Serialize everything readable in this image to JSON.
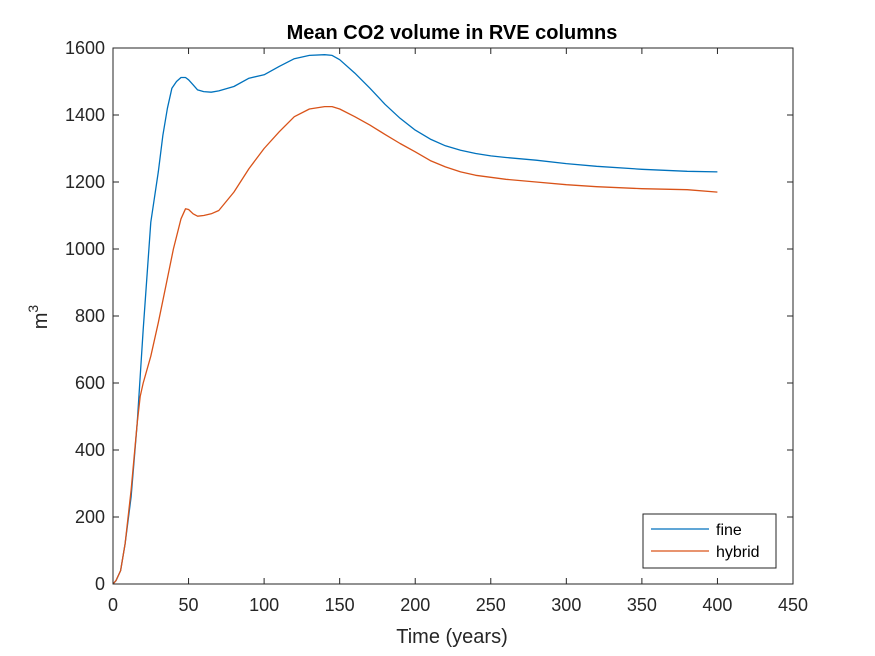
{
  "chart_data": {
    "type": "line",
    "title": "Mean CO2 volume in RVE columns",
    "xlabel": "Time (years)",
    "ylabel": "m",
    "ylabel_superscript": "3",
    "xlim": [
      0,
      450
    ],
    "ylim": [
      0,
      1600
    ],
    "xticks": [
      0,
      50,
      100,
      150,
      200,
      250,
      300,
      350,
      400,
      450
    ],
    "yticks": [
      0,
      200,
      400,
      600,
      800,
      1000,
      1200,
      1400,
      1600
    ],
    "grid": false,
    "legend_position": "bottom-right",
    "series": [
      {
        "name": "fine",
        "color": "#0072BD",
        "x": [
          0,
          2,
          5,
          8,
          12,
          16,
          20,
          25,
          30,
          33,
          36,
          39,
          42,
          45,
          48,
          50,
          53,
          56,
          60,
          65,
          70,
          80,
          90,
          100,
          110,
          120,
          130,
          140,
          145,
          150,
          160,
          170,
          180,
          190,
          200,
          210,
          220,
          230,
          240,
          250,
          260,
          280,
          300,
          320,
          350,
          380,
          400
        ],
        "y": [
          0,
          10,
          40,
          120,
          260,
          480,
          760,
          1080,
          1230,
          1340,
          1420,
          1480,
          1500,
          1512,
          1512,
          1505,
          1490,
          1475,
          1470,
          1468,
          1472,
          1485,
          1510,
          1520,
          1545,
          1568,
          1578,
          1580,
          1578,
          1565,
          1525,
          1480,
          1432,
          1390,
          1355,
          1328,
          1308,
          1295,
          1285,
          1278,
          1273,
          1265,
          1255,
          1247,
          1238,
          1232,
          1230
        ]
      },
      {
        "name": "hybrid",
        "color": "#D95319",
        "x": [
          0,
          2,
          5,
          8,
          12,
          16,
          18,
          20,
          25,
          30,
          35,
          40,
          45,
          48,
          50,
          53,
          56,
          60,
          65,
          70,
          80,
          90,
          100,
          110,
          120,
          130,
          140,
          145,
          150,
          160,
          170,
          180,
          190,
          200,
          210,
          220,
          230,
          240,
          250,
          260,
          280,
          300,
          320,
          350,
          380,
          400
        ],
        "y": [
          0,
          10,
          40,
          120,
          280,
          480,
          560,
          600,
          680,
          780,
          890,
          1000,
          1090,
          1120,
          1118,
          1105,
          1098,
          1100,
          1105,
          1115,
          1170,
          1240,
          1300,
          1350,
          1395,
          1418,
          1425,
          1425,
          1418,
          1395,
          1370,
          1342,
          1315,
          1290,
          1264,
          1245,
          1230,
          1220,
          1214,
          1208,
          1200,
          1192,
          1186,
          1180,
          1177,
          1170
        ]
      }
    ]
  }
}
